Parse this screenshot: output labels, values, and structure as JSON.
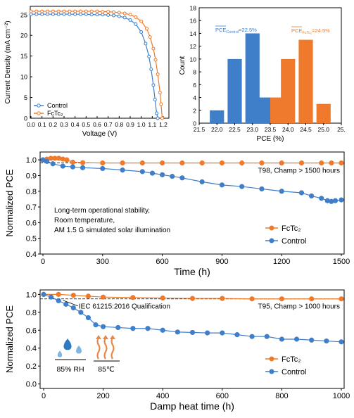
{
  "colors": {
    "control": "#3f7ec8",
    "fctc2": "#ef7a2b",
    "drop": "#3f7ec8",
    "heat": "#e8894a"
  },
  "chart_data": [
    {
      "type": "line",
      "panel": "jv",
      "xlabel": "Voltage (V)",
      "ylabel": "Current Density (mA cm⁻²)",
      "xlim": [
        0.0,
        1.2
      ],
      "ylim": [
        0,
        27
      ],
      "xticks": [
        "0.0",
        "0.1",
        "0.2",
        "0.3",
        "0.4",
        "0.5",
        "0.6",
        "0.7",
        "0.8",
        "0.9",
        "1.0",
        "1.1",
        "1.2"
      ],
      "yticks": [
        "0",
        "5",
        "10",
        "15",
        "20",
        "25"
      ],
      "series": [
        {
          "name": "Control",
          "color": "#3f7ec8",
          "x": [
            0,
            0.05,
            0.1,
            0.15,
            0.2,
            0.25,
            0.3,
            0.35,
            0.4,
            0.45,
            0.5,
            0.55,
            0.6,
            0.65,
            0.7,
            0.75,
            0.8,
            0.85,
            0.9,
            0.95,
            1.0,
            1.04,
            1.07,
            1.09,
            1.11,
            1.125,
            1.14,
            1.15
          ],
          "y": [
            25.1,
            25.1,
            25.1,
            25.1,
            25.1,
            25.1,
            25.1,
            25.1,
            25.1,
            25.1,
            25.1,
            25.0,
            25.0,
            25.0,
            24.9,
            24.8,
            24.6,
            24.3,
            23.7,
            22.7,
            20.8,
            18.0,
            14.9,
            11.8,
            8.0,
            4.5,
            1.2,
            0
          ]
        },
        {
          "name": "FcTc₂",
          "color": "#ef7a2b",
          "x": [
            0,
            0.05,
            0.1,
            0.15,
            0.2,
            0.25,
            0.3,
            0.35,
            0.4,
            0.45,
            0.5,
            0.55,
            0.6,
            0.65,
            0.7,
            0.75,
            0.8,
            0.85,
            0.9,
            0.95,
            1.0,
            1.05,
            1.08,
            1.11,
            1.13,
            1.15,
            1.17,
            1.18,
            1.19
          ],
          "y": [
            25.8,
            25.8,
            25.8,
            25.8,
            25.8,
            25.8,
            25.8,
            25.8,
            25.8,
            25.8,
            25.8,
            25.8,
            25.8,
            25.7,
            25.7,
            25.6,
            25.5,
            25.3,
            25.0,
            24.4,
            23.4,
            21.6,
            19.6,
            16.8,
            14.1,
            10.6,
            6.2,
            3.4,
            0
          ]
        }
      ],
      "legend": "bottom-left"
    },
    {
      "type": "bar",
      "panel": "histogram",
      "xlabel": "PCE (%)",
      "ylabel": "Count",
      "xlim": [
        21.5,
        25.5
      ],
      "ylim": [
        0,
        18
      ],
      "xticks": [
        "21.5",
        "22.0",
        "22.5",
        "23.0",
        "23.5",
        "24.0",
        "24.5",
        "25.0",
        "25."
      ],
      "yticks": [
        "0",
        "2",
        "4",
        "6",
        "8",
        "10",
        "12",
        "14",
        "16",
        "18"
      ],
      "series": [
        {
          "name": "Control",
          "color": "#3f7ec8",
          "x": [
            22.0,
            22.5,
            23.0,
            23.5
          ],
          "values": [
            2,
            10,
            14,
            4
          ]
        },
        {
          "name": "FcTc₂",
          "color": "#ef7a2b",
          "x": [
            23.5,
            24.0,
            24.5,
            25.0
          ],
          "values": [
            4,
            10,
            13,
            3
          ]
        }
      ],
      "annotations": [
        {
          "base": "PCE",
          "sub": "Control",
          "rest": "=22.5%",
          "color": "#3f7ec8"
        },
        {
          "base": "PCE",
          "sub": "FcTc₂",
          "rest": "=24.5%",
          "color": "#ef7a2b"
        }
      ]
    },
    {
      "type": "line",
      "panel": "stability",
      "xlabel": "Time (h)",
      "ylabel": "Normalized PCE",
      "xlim": [
        0,
        1500
      ],
      "ylim": [
        0.4,
        1.05
      ],
      "xticks": [
        "0",
        "300",
        "600",
        "900",
        "1200",
        "1500"
      ],
      "yticks": [
        "0.4",
        "0.5",
        "0.6",
        "0.7",
        "0.8",
        "0.9",
        "1.0"
      ],
      "annotation_right": "T98, Champ > 1500 hours",
      "note_lines": [
        "Long-term operational stability,",
        "Room temperature,",
        "AM 1.5 G simulated solar illumination"
      ],
      "legend": "right",
      "series": [
        {
          "name": "FcTc₂",
          "color": "#ef7a2b",
          "x": [
            0,
            20,
            40,
            60,
            80,
            100,
            120,
            150,
            200,
            300,
            400,
            500,
            600,
            700,
            800,
            900,
            1000,
            1100,
            1200,
            1300,
            1400,
            1450,
            1500
          ],
          "y": [
            1.0,
            1.005,
            1.01,
            1.01,
            1.01,
            1.005,
            1.0,
            0.985,
            0.982,
            0.98,
            0.98,
            0.98,
            0.98,
            0.98,
            0.98,
            0.98,
            0.98,
            0.98,
            0.98,
            0.98,
            0.98,
            0.98,
            0.98
          ]
        },
        {
          "name": "Control",
          "color": "#3f7ec8",
          "x": [
            0,
            20,
            50,
            100,
            150,
            200,
            300,
            400,
            500,
            550,
            600,
            650,
            700,
            800,
            900,
            1000,
            1100,
            1200,
            1300,
            1350,
            1400,
            1430,
            1450,
            1470,
            1500
          ],
          "y": [
            1.0,
            0.99,
            0.975,
            0.96,
            0.955,
            0.95,
            0.945,
            0.935,
            0.925,
            0.915,
            0.905,
            0.895,
            0.885,
            0.86,
            0.84,
            0.83,
            0.815,
            0.8,
            0.79,
            0.77,
            0.755,
            0.74,
            0.735,
            0.74,
            0.745
          ]
        }
      ]
    },
    {
      "type": "line",
      "panel": "damp-heat",
      "xlabel": "Damp heat time (h)",
      "ylabel": "Normalized PCE",
      "xlim": [
        0,
        1000
      ],
      "ylim": [
        -0.05,
        1.05
      ],
      "xticks": [
        "0",
        "200",
        "400",
        "600",
        "800",
        "1000"
      ],
      "yticks": [
        "0.0",
        "0.2",
        "0.4",
        "0.6",
        "0.8",
        "1.0"
      ],
      "annotation_right": "T95, Champ > 1000 hours",
      "annotation_left": "IEC 61215:2016 Qualification",
      "conditions": [
        "85% RH",
        "85℃"
      ],
      "legend": "right",
      "series": [
        {
          "name": "FcTc₂",
          "color": "#ef7a2b",
          "x": [
            0,
            50,
            100,
            150,
            200,
            300,
            400,
            500,
            600,
            700,
            800,
            900,
            1000
          ],
          "y": [
            1.0,
            1.0,
            0.99,
            0.98,
            0.97,
            0.965,
            0.96,
            0.955,
            0.955,
            0.95,
            0.95,
            0.95,
            0.95
          ]
        },
        {
          "name": "Control",
          "color": "#3f7ec8",
          "x": [
            0,
            25,
            50,
            75,
            100,
            125,
            150,
            175,
            200,
            250,
            300,
            350,
            400,
            450,
            500,
            550,
            600,
            650,
            700,
            750,
            800,
            850,
            900,
            950,
            1000
          ],
          "y": [
            1.0,
            0.97,
            0.93,
            0.89,
            0.85,
            0.8,
            0.74,
            0.66,
            0.64,
            0.63,
            0.62,
            0.62,
            0.6,
            0.58,
            0.575,
            0.57,
            0.57,
            0.55,
            0.53,
            0.53,
            0.5,
            0.5,
            0.49,
            0.48,
            0.47
          ]
        }
      ]
    }
  ]
}
